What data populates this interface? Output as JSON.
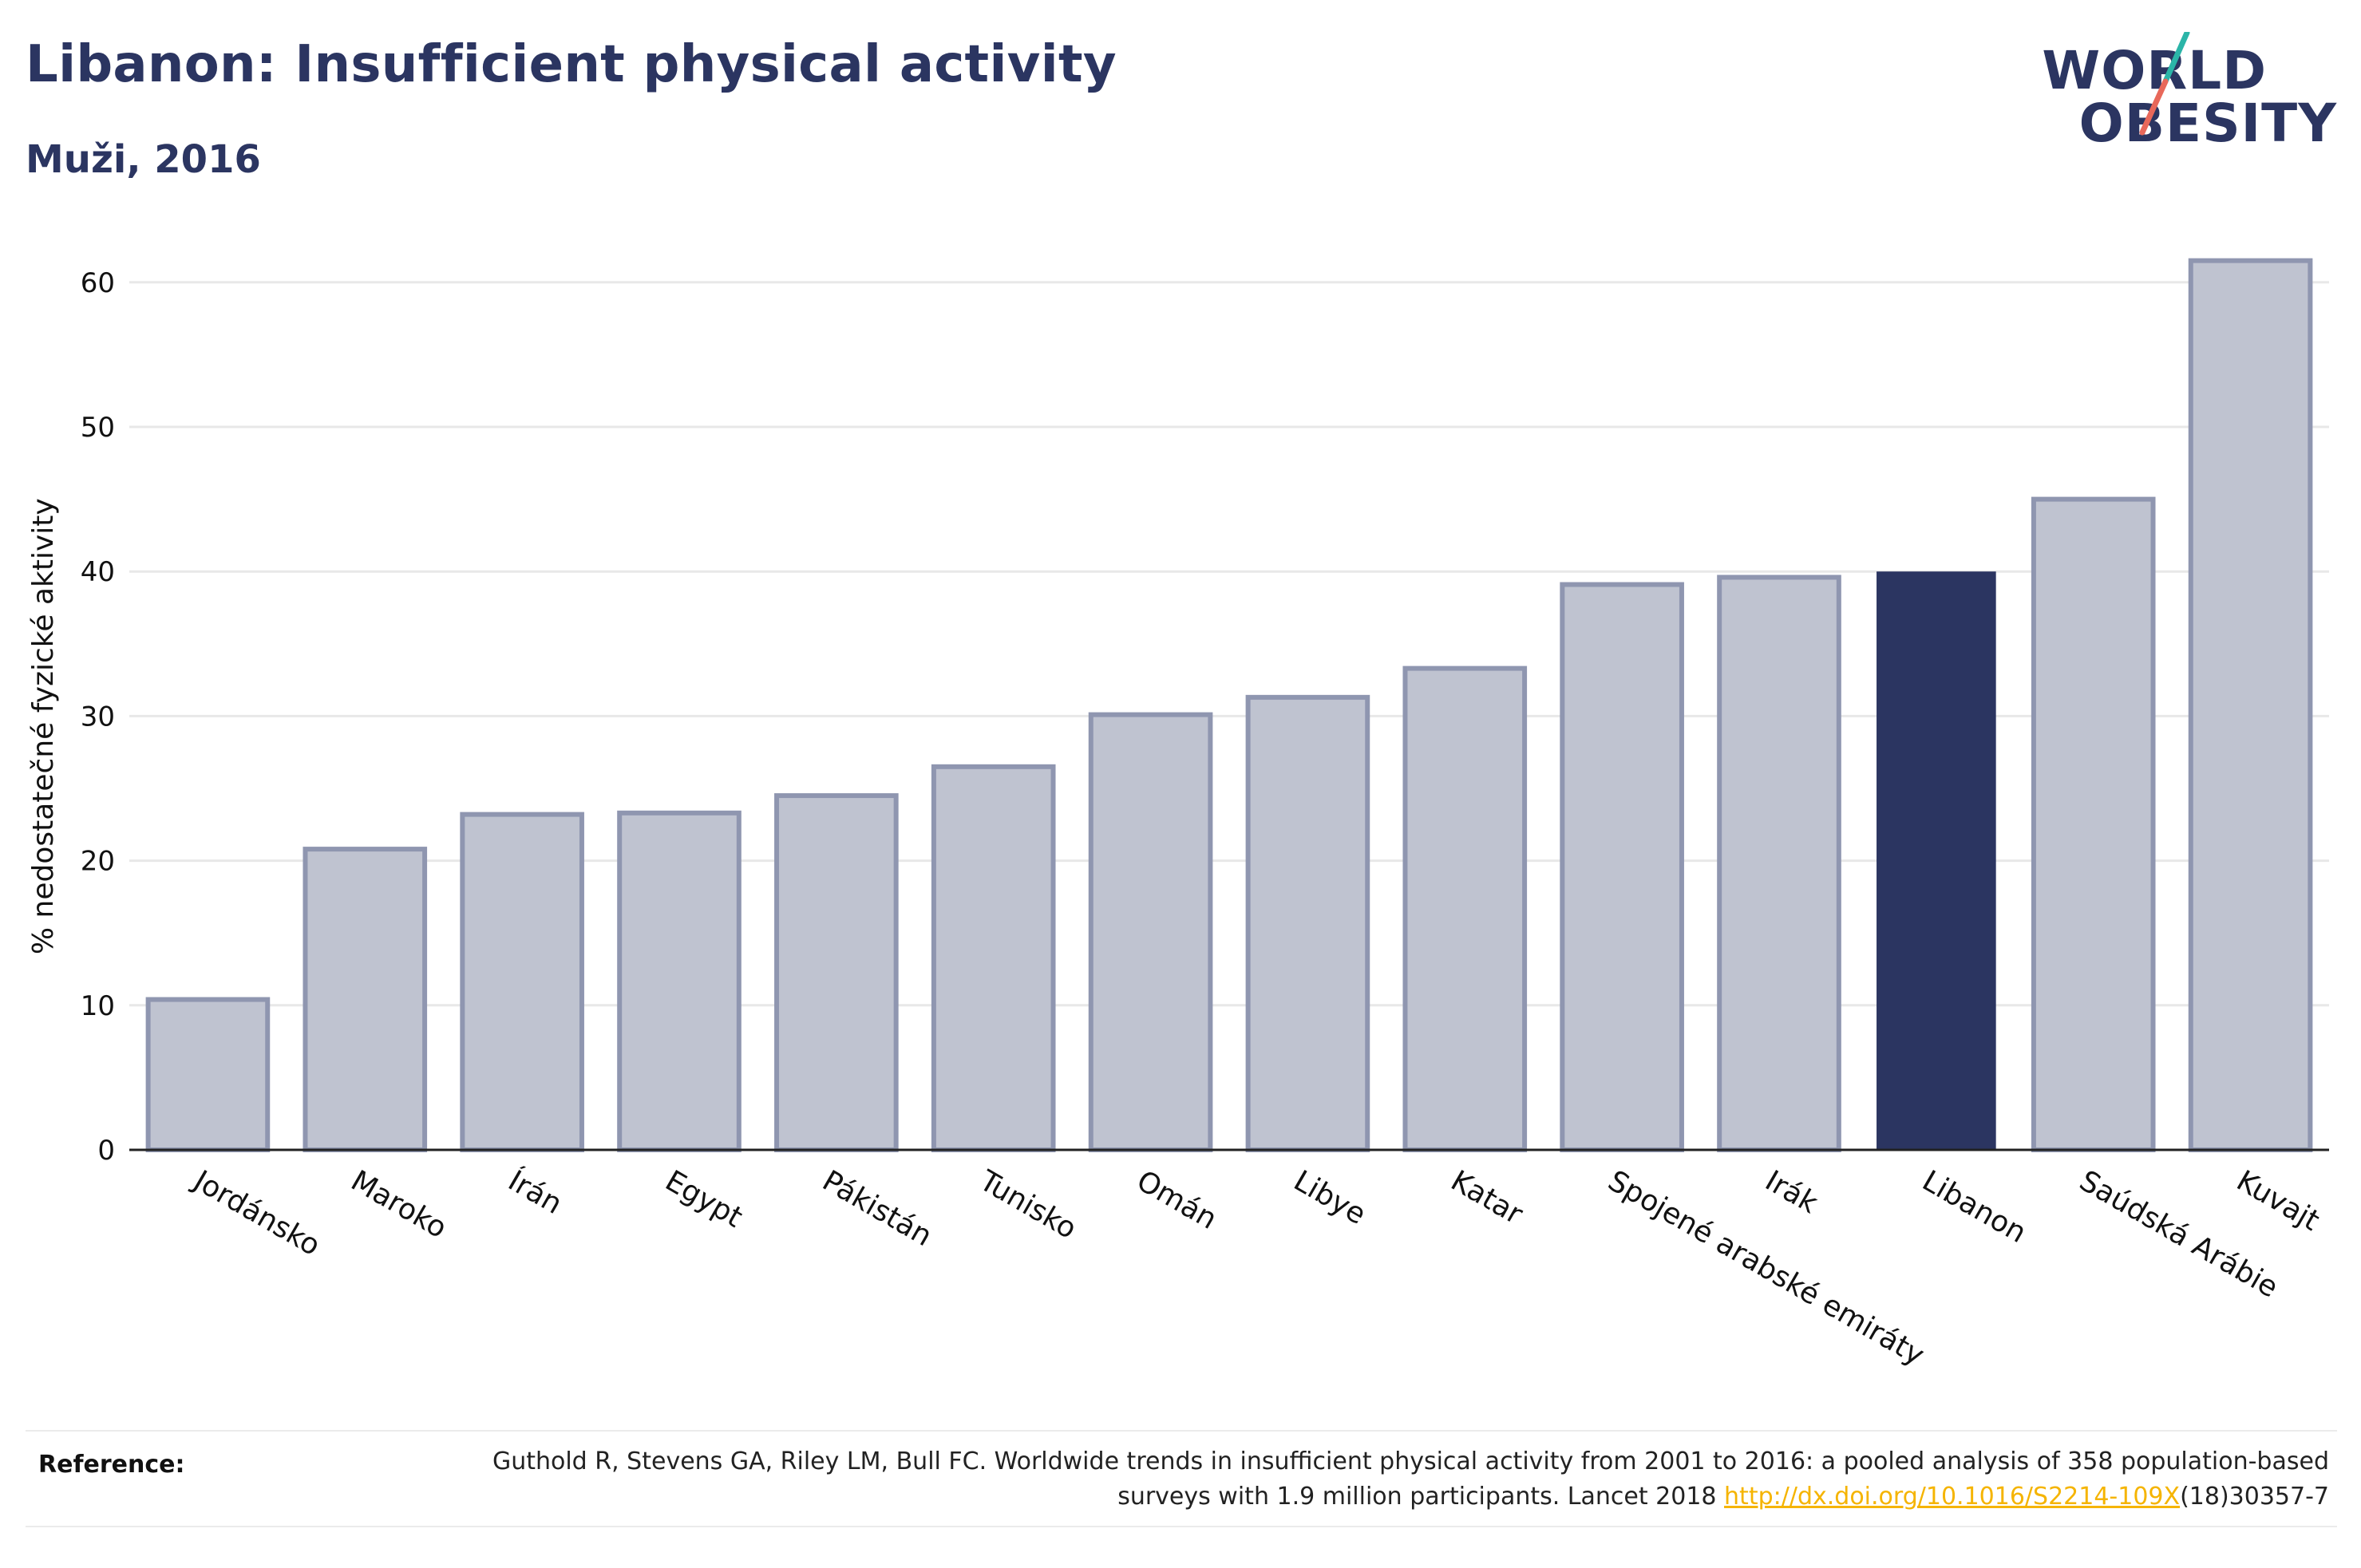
{
  "header": {
    "title": "Libanon: Insufficient physical activity",
    "subtitle": "Muži, 2016"
  },
  "logo": {
    "line1": "WORLD",
    "line2": "OBESITY",
    "icon": "world-obesity-slash-logo",
    "colors": {
      "text": "#2b3561",
      "slash_top": "#2bb5a8",
      "slash_bottom": "#e8685a"
    }
  },
  "chart_data": {
    "type": "bar",
    "title": "Libanon: Insufficient physical activity",
    "subtitle": "Muži, 2016",
    "xlabel": "",
    "ylabel": "% nedostatečné fyzické aktivity",
    "ylim": [
      0,
      63
    ],
    "yticks": [
      0,
      10,
      20,
      30,
      40,
      50,
      60
    ],
    "grid": true,
    "legend": "none",
    "categories": [
      "Jordánsko",
      "Maroko",
      "Írán",
      "Egypt",
      "Pákistán",
      "Tunisko",
      "Omán",
      "Libye",
      "Katar",
      "Spojené arabské emiráty",
      "Irák",
      "Libanon",
      "Saúdská Arábie",
      "Kuvajt"
    ],
    "values": [
      10.4,
      20.8,
      23.2,
      23.3,
      24.5,
      26.5,
      30.1,
      31.3,
      33.3,
      39.1,
      39.6,
      40.0,
      45.0,
      61.5
    ],
    "highlight": "Libanon",
    "colors": {
      "bar": "#bfc3d0",
      "bar_edge": "#8f96b0",
      "highlight": "#2b3561",
      "grid": "#e8e8e8",
      "axis": "#222222"
    }
  },
  "reference": {
    "label": "Reference:",
    "text": "Guthold R, Stevens GA, Riley LM, Bull FC. Worldwide trends in insufficient physical activity from 2001 to 2016: a pooled analysis of 358 population-based surveys with 1.9 million participants. Lancet 2018 ",
    "link_text": "http://dx.doi.org/10.1016/S2214-109X",
    "after_link": "(18)30357-7"
  }
}
